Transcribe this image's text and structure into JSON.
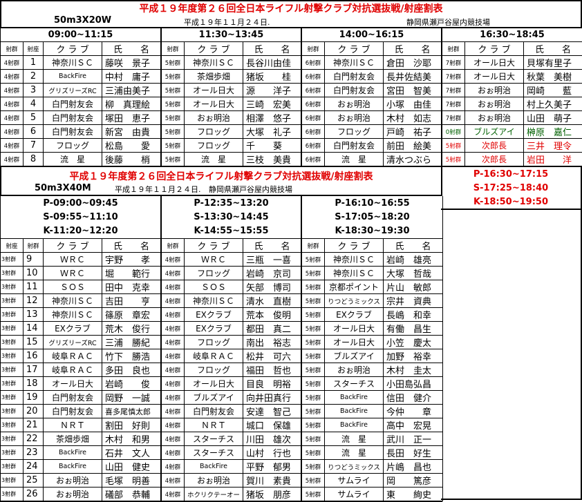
{
  "colors": {
    "title": "#e00000",
    "special_green": "#006000",
    "special_red": "#e00000"
  },
  "top": {
    "title": "平成１９年度第２６回全日本ライフル射撃クラブ対抗選抜戦/射座割表",
    "event": "50m3X20W",
    "date": "平成１９年１１月２４日.",
    "venue": "静岡県瀬戸谷屋内競技場",
    "headers": {
      "group": "射群",
      "lane": "射座",
      "club": "ク ラ ブ",
      "name": "氏　　名"
    },
    "lanes": [
      "1",
      "2",
      "3",
      "4",
      "5",
      "6",
      "7",
      "8"
    ],
    "sessions": [
      {
        "time": "09:00~11:15",
        "rows": [
          {
            "group": "4射群",
            "club": "神奈川ＳＣ",
            "name": "藤咲　景子"
          },
          {
            "group": "4射群",
            "club": "BackFire",
            "name": "中村　庸子"
          },
          {
            "group": "4射群",
            "club": "グリズリーズRC",
            "name": "三浦由美子"
          },
          {
            "group": "4射群",
            "club": "白門射友会",
            "name": "柳　真理絵"
          },
          {
            "group": "4射群",
            "club": "白門射友会",
            "name": "塚田　恵子"
          },
          {
            "group": "4射群",
            "club": "白門射友会",
            "name": "新宮　由貴"
          },
          {
            "group": "4射群",
            "club": "フロッグ",
            "name": "松島　　愛"
          },
          {
            "group": "4射群",
            "club": "流　星",
            "name": "後藤　　梢"
          }
        ]
      },
      {
        "time": "11:30~13:45",
        "rows": [
          {
            "group": "5射群",
            "club": "神奈川ＳＣ",
            "name": "長谷川由佳"
          },
          {
            "group": "5射群",
            "club": "茶畑歩畑",
            "name": "猪坂　　桂"
          },
          {
            "group": "5射群",
            "club": "オール日大",
            "name": "源　　洋子"
          },
          {
            "group": "5射群",
            "club": "オール日大",
            "name": "三崎　宏美"
          },
          {
            "group": "5射群",
            "club": "おぉ明治",
            "name": "相澤　悠子"
          },
          {
            "group": "5射群",
            "club": "フロッグ",
            "name": "大塚　礼子"
          },
          {
            "group": "5射群",
            "club": "フロッグ",
            "name": "千　　葵"
          },
          {
            "group": "5射群",
            "club": "流　星",
            "name": "三枝　美貴"
          }
        ]
      },
      {
        "time": "14:00~16:15",
        "rows": [
          {
            "group": "6射群",
            "club": "神奈川ＳＣ",
            "name": "倉田　沙耶"
          },
          {
            "group": "6射群",
            "club": "白門射友会",
            "name": "長井佐結美"
          },
          {
            "group": "6射群",
            "club": "白門射友会",
            "name": "宮田　智美"
          },
          {
            "group": "6射群",
            "club": "おぉ明治",
            "name": "小塚　由佳"
          },
          {
            "group": "6射群",
            "club": "おぉ明治",
            "name": "木村　如志"
          },
          {
            "group": "6射群",
            "club": "フロッグ",
            "name": "戸崎　祐子"
          },
          {
            "group": "6射群",
            "club": "白門射友会",
            "name": "前田　絵美"
          },
          {
            "group": "6射群",
            "club": "流　星",
            "name": "清水つぶら"
          }
        ]
      },
      {
        "time": "16:30~18:45",
        "rows": [
          {
            "group": "7射群",
            "club": "オール日大",
            "name": "貝塚有里子"
          },
          {
            "group": "7射群",
            "club": "オール日大",
            "name": "秋葉　美樹"
          },
          {
            "group": "7射群",
            "club": "おぉ明治",
            "name": "岡崎　　藍"
          },
          {
            "group": "7射群",
            "club": "おぉ明治",
            "name": "村上久美子"
          },
          {
            "group": "7射群",
            "club": "おぉ明治",
            "name": "山田　萌子"
          },
          {
            "group": "0射群",
            "club": "ブルズアイ",
            "name": "榊原　嘉仁",
            "color": "green"
          },
          {
            "group": "5射群",
            "club": "次郎長",
            "name": "三井　理令",
            "color": "red"
          },
          {
            "group": "5射群",
            "club": "次郎長",
            "name": "岩田　　洋",
            "color": "red"
          }
        ]
      }
    ]
  },
  "side": {
    "times": [
      "P-16:30~17:15",
      "S-17:25~18:40",
      "K-18:50~19:50"
    ]
  },
  "bottom": {
    "title": "平成１９年度第２６回全日本ライフル射撃クラブ対抗選抜戦/射座割表",
    "event": "50m3X40M",
    "date": "平成１９年１１月２４日.",
    "venue": "静岡県瀬戸谷屋内競技場",
    "headers": {
      "lane": "射座",
      "group": "射群",
      "club": "ク ラ ブ",
      "name": "氏　　名"
    },
    "lanes": [
      "9",
      "10",
      "11",
      "12",
      "13",
      "14",
      "15",
      "16",
      "17",
      "18",
      "19",
      "20",
      "21",
      "22",
      "23",
      "24",
      "25",
      "26"
    ],
    "sessions": [
      {
        "times": [
          "P-09:00~09:45",
          "S-09:55~11:10",
          "K-11:20~12:20"
        ],
        "group": "3射群",
        "rows": [
          {
            "club": "ＷＲＣ",
            "name": "宇野　　孝"
          },
          {
            "club": "ＷＲＣ",
            "name": "堀　　範行"
          },
          {
            "club": "ＳＯＳ",
            "name": "田中　克幸"
          },
          {
            "club": "神奈川ＳＣ",
            "name": "吉田　　亨"
          },
          {
            "club": "神奈川ＳＣ",
            "name": "篠原　章宏"
          },
          {
            "club": "EXクラブ",
            "name": "荒木　俊行"
          },
          {
            "club": "グリズリーズRC",
            "name": "三浦　勝紀"
          },
          {
            "club": "岐阜ＲＡＣ",
            "name": "竹下　勝浩"
          },
          {
            "club": "岐阜ＲＡＣ",
            "name": "多田　良也"
          },
          {
            "club": "オール日大",
            "name": "岩崎　　俊"
          },
          {
            "club": "白門射友会",
            "name": "岡野　一誠"
          },
          {
            "club": "白門射友会",
            "name": "喜多尾慎太郎"
          },
          {
            "club": "ＮＲＴ",
            "name": "割田　好則"
          },
          {
            "club": "茶畑歩畑",
            "name": "木村　和男"
          },
          {
            "club": "BackFire",
            "name": "石井　文人"
          },
          {
            "club": "BackFire",
            "name": "山田　健史"
          },
          {
            "club": "おぉ明治",
            "name": "毛塚　明善"
          },
          {
            "club": "おぉ明治",
            "name": "礒部　恭輔"
          }
        ]
      },
      {
        "times": [
          "P-12:35~13:20",
          "S-13:30~14:45",
          "K-14:55~15:55"
        ],
        "group": "4射群",
        "rows": [
          {
            "club": "ＷＲＣ",
            "name": "三瓶　一喜"
          },
          {
            "club": "フロッグ",
            "name": "岩崎　京司"
          },
          {
            "club": "ＳＯＳ",
            "name": "矢部　博司"
          },
          {
            "club": "神奈川ＳＣ",
            "name": "清水　直樹"
          },
          {
            "club": "EXクラブ",
            "name": "荒本　俊明"
          },
          {
            "club": "EXクラブ",
            "name": "都田　真二"
          },
          {
            "club": "フロッグ",
            "name": "南出　裕志"
          },
          {
            "club": "岐阜ＲＡＣ",
            "name": "松井　可六"
          },
          {
            "club": "フロッグ",
            "name": "福田　哲也"
          },
          {
            "club": "オール日大",
            "name": "目良　明裕"
          },
          {
            "club": "ブルズアイ",
            "name": "向井田真行"
          },
          {
            "club": "白門射友会",
            "name": "安達　智己"
          },
          {
            "club": "ＮＲＴ",
            "name": "城口　保雄"
          },
          {
            "club": "スターチス",
            "name": "川田　雄次"
          },
          {
            "club": "スターチス",
            "name": "山村　行也"
          },
          {
            "club": "BackFire",
            "name": "平野　郁男"
          },
          {
            "club": "おぉ明治",
            "name": "賀川　素貴"
          },
          {
            "club": "ホクリクテーオー",
            "name": "猪坂　朋彦"
          }
        ]
      },
      {
        "times": [
          "P-16:10~16:55",
          "S-17:05~18:20",
          "K-18:30~19:30"
        ],
        "group": "5射群",
        "rows": [
          {
            "club": "神奈川ＳＣ",
            "name": "岩崎　雄亮"
          },
          {
            "club": "神奈川ＳＣ",
            "name": "大塚　哲哉"
          },
          {
            "club": "京都ポイント",
            "name": "片山　敏郎"
          },
          {
            "club": "りつどうミックス",
            "name": "宗井　資典"
          },
          {
            "club": "EXクラブ",
            "name": "長嶋　和幸"
          },
          {
            "club": "オール日大",
            "name": "有働　昌生"
          },
          {
            "club": "オール日大",
            "name": "小笠　慶太"
          },
          {
            "club": "ブルズアイ",
            "name": "加野　裕幸"
          },
          {
            "club": "おぉ明治",
            "name": "木村　圭太"
          },
          {
            "club": "スターチス",
            "name": "小田島弘昌"
          },
          {
            "club": "BackFire",
            "name": "信田　健介"
          },
          {
            "club": "BackFire",
            "name": "今仲　　章"
          },
          {
            "club": "BackFire",
            "name": "高中　宏晃"
          },
          {
            "club": "流　星",
            "name": "武川　正一"
          },
          {
            "club": "流　星",
            "name": "長田　好生"
          },
          {
            "club": "りつどうミックス",
            "name": "片嶋　昌也"
          },
          {
            "club": "サムライ",
            "name": "岡　　篤彦"
          },
          {
            "club": "サムライ",
            "name": "東　　絢史"
          }
        ]
      }
    ]
  }
}
